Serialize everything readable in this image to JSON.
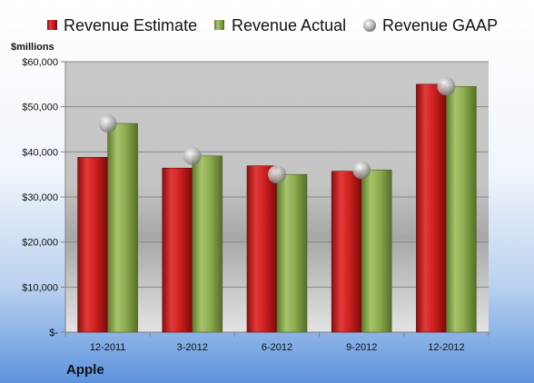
{
  "chart_data": {
    "type": "bar",
    "title": "Apple",
    "ylabel": "$millions",
    "xlabel": "",
    "categories": [
      "12-2011",
      "3-2012",
      "6-2012",
      "9-2012",
      "12-2012"
    ],
    "series": [
      {
        "name": "Revenue Estimate",
        "kind": "bar",
        "color": "#cc1f1f",
        "values": [
          38800,
          36400,
          36900,
          35700,
          55000
        ]
      },
      {
        "name": "Revenue Actual",
        "kind": "bar",
        "color": "#8caa4e",
        "values": [
          46300,
          39100,
          35000,
          36000,
          54500
        ]
      },
      {
        "name": "Revenue GAAP",
        "kind": "marker",
        "color": "#aaaaaa",
        "values": [
          46300,
          39100,
          35000,
          36000,
          54500
        ]
      }
    ],
    "ylim": [
      0,
      60000
    ],
    "yticks": [
      0,
      10000,
      20000,
      30000,
      40000,
      50000,
      60000
    ],
    "ytick_labels": [
      "$-",
      "$10,000",
      "$20,000",
      "$30,000",
      "$40,000",
      "$50,000",
      "$60,000"
    ],
    "grid": true,
    "legend_position": "top"
  }
}
